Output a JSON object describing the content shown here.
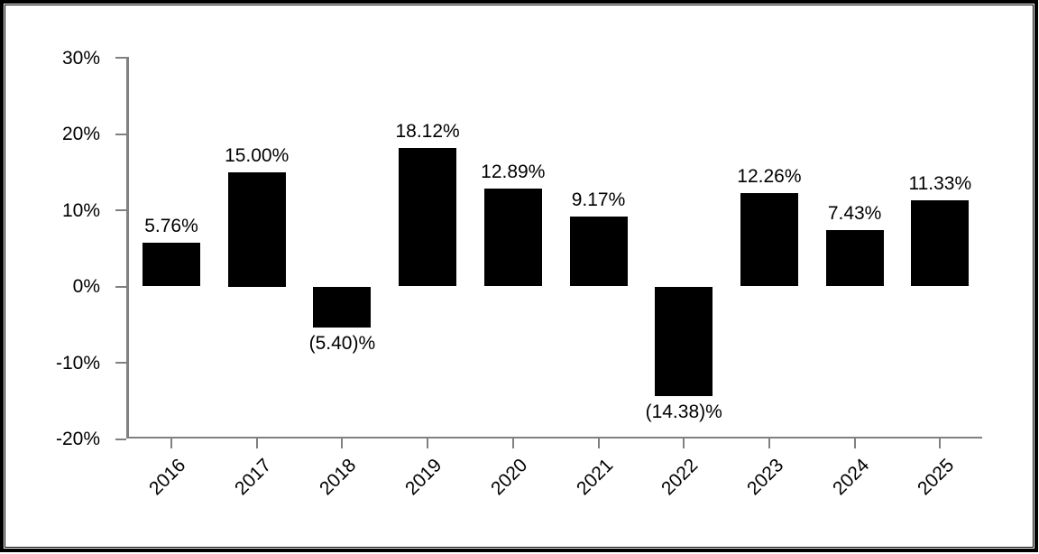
{
  "chart_data": {
    "type": "bar",
    "title": "",
    "xlabel": "",
    "ylabel": "",
    "categories": [
      "2016",
      "2017",
      "2018",
      "2019",
      "2020",
      "2021",
      "2022",
      "2023",
      "2024",
      "2025"
    ],
    "values": [
      5.76,
      15.0,
      -5.4,
      18.12,
      12.89,
      9.17,
      -14.38,
      12.26,
      7.43,
      11.33
    ],
    "bar_labels": [
      "5.76%",
      "15.00%",
      "(5.40)%",
      "18.12%",
      "12.89%",
      "9.17%",
      "(14.38)%",
      "12.26%",
      "7.43%",
      "11.33%"
    ],
    "y_ticks": [
      {
        "value": 30,
        "label": "30%"
      },
      {
        "value": 20,
        "label": "20%"
      },
      {
        "value": 10,
        "label": "10%"
      },
      {
        "value": 0,
        "label": "0%"
      },
      {
        "value": -10,
        "label": "-10%"
      },
      {
        "value": -20,
        "label": "-20%"
      }
    ],
    "ylim": [
      -20,
      30
    ],
    "grid": false,
    "legend": false,
    "bar_color": "#000000",
    "axis_color": "#808080",
    "text_color": "#000000",
    "frame_color": "#000000",
    "background_color": "#ffffff"
  }
}
